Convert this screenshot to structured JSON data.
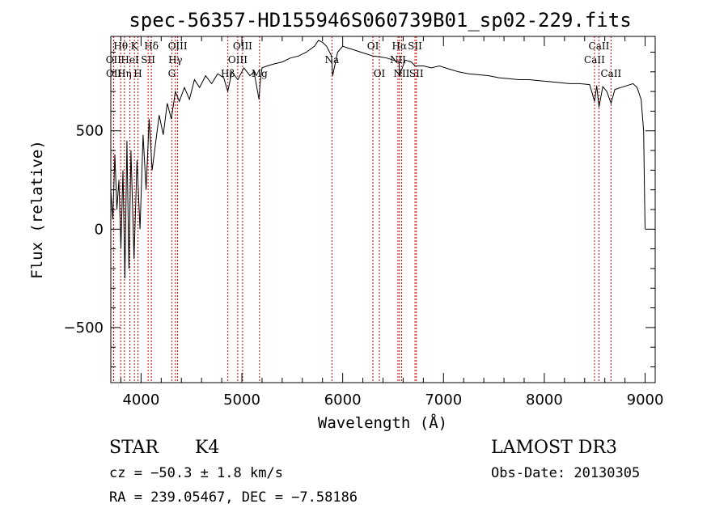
{
  "chart_data": {
    "type": "line",
    "title": "spec-56357-HD155946S060739B01_sp02-229.fits",
    "xlabel": "Wavelength (Å)",
    "ylabel": "Flux (relative)",
    "xlim": [
      3700,
      9100
    ],
    "ylim": [
      -780,
      980
    ],
    "xticks": [
      4000,
      5000,
      6000,
      7000,
      8000,
      9000
    ],
    "yticks": [
      -500,
      0,
      500
    ],
    "series": [
      {
        "name": "flux",
        "x": [
          3700,
          3720,
          3740,
          3760,
          3780,
          3800,
          3820,
          3840,
          3860,
          3880,
          3900,
          3930,
          3960,
          3990,
          4020,
          4050,
          4080,
          4110,
          4140,
          4180,
          4220,
          4260,
          4300,
          4340,
          4380,
          4430,
          4480,
          4530,
          4580,
          4640,
          4700,
          4760,
          4820,
          4860,
          4900,
          4960,
          5020,
          5080,
          5120,
          5170,
          5180,
          5200,
          5250,
          5320,
          5400,
          5480,
          5560,
          5640,
          5720,
          5760,
          5800,
          5840,
          5890,
          5900,
          5950,
          6000,
          6060,
          6120,
          6180,
          6240,
          6300,
          6380,
          6440,
          6500,
          6560,
          6563,
          6620,
          6680,
          6720,
          6800,
          6880,
          6960,
          7050,
          7150,
          7250,
          7350,
          7450,
          7550,
          7650,
          7750,
          7850,
          7950,
          8050,
          8150,
          8250,
          8350,
          8450,
          8498,
          8520,
          8542,
          8580,
          8620,
          8662,
          8700,
          8760,
          8820,
          8880,
          8920,
          8960,
          8985,
          8995,
          9000
        ],
        "values": [
          200,
          50,
          380,
          100,
          250,
          -100,
          300,
          -250,
          450,
          -200,
          400,
          -150,
          350,
          0,
          480,
          200,
          560,
          300,
          420,
          580,
          480,
          640,
          560,
          700,
          650,
          720,
          660,
          760,
          720,
          780,
          740,
          790,
          770,
          700,
          800,
          760,
          820,
          780,
          800,
          660,
          740,
          820,
          830,
          840,
          850,
          870,
          880,
          900,
          930,
          960,
          950,
          930,
          880,
          780,
          900,
          930,
          920,
          910,
          900,
          890,
          880,
          875,
          870,
          860,
          850,
          780,
          860,
          850,
          830,
          830,
          820,
          830,
          815,
          800,
          790,
          785,
          780,
          770,
          765,
          760,
          760,
          755,
          750,
          745,
          740,
          740,
          735,
          650,
          730,
          620,
          725,
          700,
          640,
          710,
          720,
          730,
          740,
          720,
          660,
          500,
          150,
          0
        ]
      }
    ],
    "spectral_lines": [
      {
        "label": "Hθ",
        "wavelength": 3798,
        "row": 1
      },
      {
        "label": "OII",
        "wavelength": 3727,
        "row": 2
      },
      {
        "label": "OII",
        "wavelength": 3729,
        "row": 3
      },
      {
        "label": "K",
        "wavelength": 3934,
        "row": 1
      },
      {
        "label": "H",
        "wavelength": 3969,
        "row": 3
      },
      {
        "label": "HeI",
        "wavelength": 3889,
        "row": 2
      },
      {
        "label": "Hη",
        "wavelength": 3835,
        "row": 3
      },
      {
        "label": "Hδ",
        "wavelength": 4102,
        "row": 1
      },
      {
        "label": "SII",
        "wavelength": 4070,
        "row": 2
      },
      {
        "label": "OIII",
        "wavelength": 4363,
        "row": 1
      },
      {
        "label": "Hγ",
        "wavelength": 4340,
        "row": 2
      },
      {
        "label": "G",
        "wavelength": 4305,
        "row": 3
      },
      {
        "label": "OIII",
        "wavelength": 5007,
        "row": 1
      },
      {
        "label": "OIII",
        "wavelength": 4959,
        "row": 2
      },
      {
        "label": "Hβ",
        "wavelength": 4861,
        "row": 3
      },
      {
        "label": "Mg",
        "wavelength": 5175,
        "row": 3
      },
      {
        "label": "Na",
        "wavelength": 5893,
        "row": 2
      },
      {
        "label": "OI",
        "wavelength": 6300,
        "row": 1
      },
      {
        "label": "OI",
        "wavelength": 6364,
        "row": 3
      },
      {
        "label": "Hα",
        "wavelength": 6563,
        "row": 1
      },
      {
        "label": "NII",
        "wavelength": 6548,
        "row": 2
      },
      {
        "label": "NII",
        "wavelength": 6584,
        "row": 3
      },
      {
        "label": "SII",
        "wavelength": 6717,
        "row": 1
      },
      {
        "label": "SII",
        "wavelength": 6731,
        "row": 3
      },
      {
        "label": "CaII",
        "wavelength": 8542,
        "row": 1
      },
      {
        "label": "CaII",
        "wavelength": 8498,
        "row": 2
      },
      {
        "label": "CaII",
        "wavelength": 8662,
        "row": 3
      }
    ]
  },
  "info": {
    "object_class": "STAR",
    "subclass": "K4",
    "survey": "LAMOST DR3",
    "cz": "cz = −50.3 ± 1.8 km/s",
    "obs_date": "Obs-Date: 20130305",
    "coords": "RA = 239.05467, DEC =  −7.58186"
  },
  "colors": {
    "line": "#000000",
    "marker": "#cc0000"
  }
}
